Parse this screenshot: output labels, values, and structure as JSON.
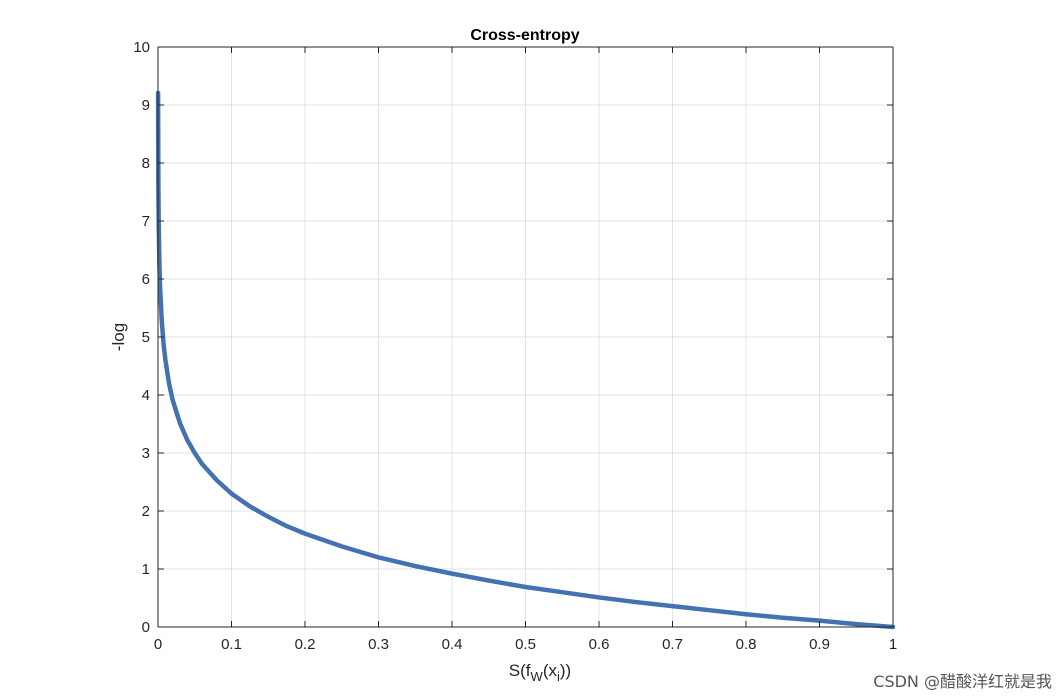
{
  "chart_data": {
    "type": "line",
    "title": "Cross-entropy",
    "xlabel": "S(f_W(x_i))",
    "ylabel": "-log",
    "xlim": [
      0,
      1
    ],
    "ylim": [
      0,
      10
    ],
    "x_ticks": [
      0,
      0.1,
      0.2,
      0.3,
      0.4,
      0.5,
      0.6,
      0.7,
      0.8,
      0.9,
      1
    ],
    "x_tick_labels": [
      "0",
      "0.1",
      "0.2",
      "0.3",
      "0.4",
      "0.5",
      "0.6",
      "0.7",
      "0.8",
      "0.9",
      "1"
    ],
    "y_ticks": [
      0,
      1,
      2,
      3,
      4,
      5,
      6,
      7,
      8,
      9,
      10
    ],
    "y_tick_labels": [
      "0",
      "1",
      "2",
      "3",
      "4",
      "5",
      "6",
      "7",
      "8",
      "9",
      "10"
    ],
    "grid": true,
    "series": [
      {
        "color": "#4472b0",
        "x": [
          0.0001,
          0.0005,
          0.001,
          0.002,
          0.003,
          0.005,
          0.0075,
          0.01,
          0.015,
          0.02,
          0.03,
          0.04,
          0.05,
          0.06,
          0.08,
          0.1,
          0.125,
          0.15,
          0.175,
          0.2,
          0.25,
          0.3,
          0.35,
          0.4,
          0.45,
          0.5,
          0.55,
          0.6,
          0.65,
          0.7,
          0.75,
          0.8,
          0.85,
          0.9,
          0.95,
          1.0
        ],
        "y": [
          9.21,
          7.6,
          6.91,
          6.21,
          5.81,
          5.3,
          4.89,
          4.61,
          4.2,
          3.91,
          3.51,
          3.22,
          3.0,
          2.81,
          2.53,
          2.3,
          2.08,
          1.9,
          1.74,
          1.61,
          1.39,
          1.2,
          1.05,
          0.92,
          0.8,
          0.69,
          0.6,
          0.51,
          0.43,
          0.36,
          0.29,
          0.22,
          0.16,
          0.11,
          0.05,
          0.0
        ]
      }
    ]
  },
  "watermark": {
    "text": "CSDN @醋酸洋红就是我"
  }
}
